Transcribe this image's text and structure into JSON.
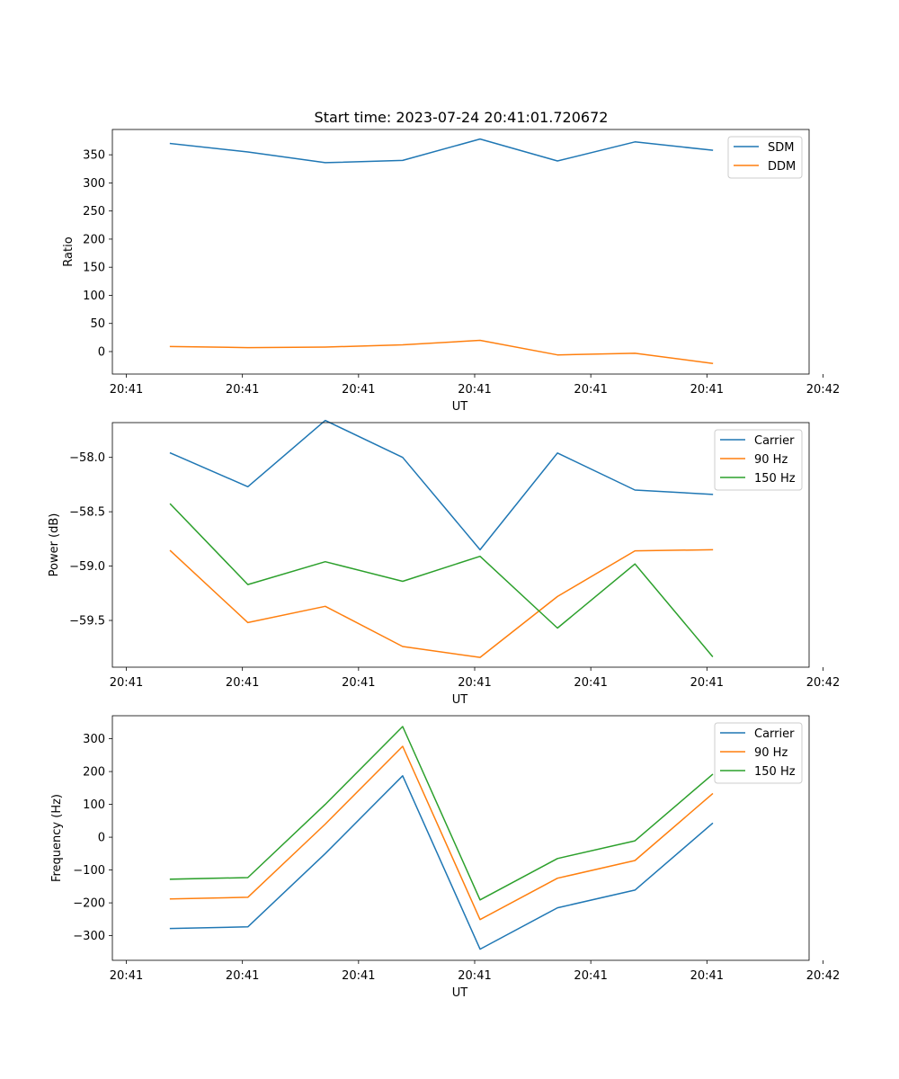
{
  "figure_title": "Start time: 2023-07-24 20:41:01.720672",
  "chart_data": [
    {
      "type": "line",
      "title": "Start time: 2023-07-24 20:41:01.720672",
      "xlabel": "UT",
      "ylabel": "Ratio",
      "x": [
        1,
        2,
        3,
        4,
        5,
        6,
        7,
        8
      ],
      "xlim": [
        0.25,
        9.25
      ],
      "x_ticks": [
        0.43,
        1.93,
        3.43,
        4.93,
        6.43,
        7.93,
        9.43
      ],
      "x_tick_labels": [
        "20:41",
        "20:41",
        "20:41",
        "20:41",
        "20:41",
        "20:41",
        "20:42"
      ],
      "ylim": [
        -40,
        395
      ],
      "y_ticks": [
        0,
        50,
        100,
        150,
        200,
        250,
        300,
        350
      ],
      "y_tick_labels": [
        "0",
        "50",
        "100",
        "150",
        "200",
        "250",
        "300",
        "350"
      ],
      "legend_position": "upper right",
      "series": [
        {
          "name": "SDM",
          "color": "#1f77b4",
          "values": [
            370,
            355,
            336,
            340,
            378,
            339,
            373,
            358
          ]
        },
        {
          "name": "DDM",
          "color": "#ff7f0e",
          "values": [
            9,
            7,
            8,
            12,
            20,
            -6,
            -3,
            -21
          ]
        }
      ]
    },
    {
      "type": "line",
      "title": "",
      "xlabel": "UT",
      "ylabel": "Power (dB)",
      "x": [
        1,
        2,
        3,
        4,
        5,
        6,
        7,
        8
      ],
      "xlim": [
        0.25,
        9.25
      ],
      "x_ticks": [
        0.43,
        1.93,
        3.43,
        4.93,
        6.43,
        7.93,
        9.43
      ],
      "x_tick_labels": [
        "20:41",
        "20:41",
        "20:41",
        "20:41",
        "20:41",
        "20:41",
        "20:42"
      ],
      "ylim": [
        -59.93,
        -57.68
      ],
      "y_ticks": [
        -59.5,
        -59.0,
        -58.5,
        -58.0
      ],
      "y_tick_labels": [
        "−59.5",
        "−59.0",
        "−58.5",
        "−58.0"
      ],
      "legend_position": "upper right",
      "series": [
        {
          "name": "Carrier",
          "color": "#1f77b4",
          "values": [
            -57.96,
            -58.27,
            -57.66,
            -58.0,
            -58.85,
            -57.96,
            -58.3,
            -58.34
          ]
        },
        {
          "name": "90 Hz",
          "color": "#ff7f0e",
          "values": [
            -58.86,
            -59.52,
            -59.37,
            -59.74,
            -59.84,
            -59.28,
            -58.86,
            -58.85
          ]
        },
        {
          "name": "150 Hz",
          "color": "#2ca02c",
          "values": [
            -58.43,
            -59.17,
            -58.96,
            -59.14,
            -58.91,
            -59.57,
            -58.98,
            -59.83
          ]
        }
      ]
    },
    {
      "type": "line",
      "title": "",
      "xlabel": "UT",
      "ylabel": "Frequency (Hz)",
      "x": [
        1,
        2,
        3,
        4,
        5,
        6,
        7,
        8
      ],
      "xlim": [
        0.25,
        9.25
      ],
      "x_ticks": [
        0.43,
        1.93,
        3.43,
        4.93,
        6.43,
        7.93,
        9.43
      ],
      "x_tick_labels": [
        "20:41",
        "20:41",
        "20:41",
        "20:41",
        "20:41",
        "20:41",
        "20:42"
      ],
      "ylim": [
        -375,
        370
      ],
      "y_ticks": [
        -300,
        -200,
        -100,
        0,
        100,
        200,
        300
      ],
      "y_tick_labels": [
        "−300",
        "−200",
        "−100",
        "0",
        "100",
        "200",
        "300"
      ],
      "legend_position": "upper right",
      "series": [
        {
          "name": "Carrier",
          "color": "#1f77b4",
          "values": [
            -278,
            -273,
            -50,
            187,
            -341,
            -215,
            -161,
            42
          ]
        },
        {
          "name": "90 Hz",
          "color": "#ff7f0e",
          "values": [
            -188,
            -183,
            40,
            277,
            -251,
            -125,
            -71,
            132
          ]
        },
        {
          "name": "150 Hz",
          "color": "#2ca02c",
          "values": [
            -128,
            -123,
            100,
            337,
            -191,
            -65,
            -11,
            191
          ]
        }
      ]
    }
  ]
}
